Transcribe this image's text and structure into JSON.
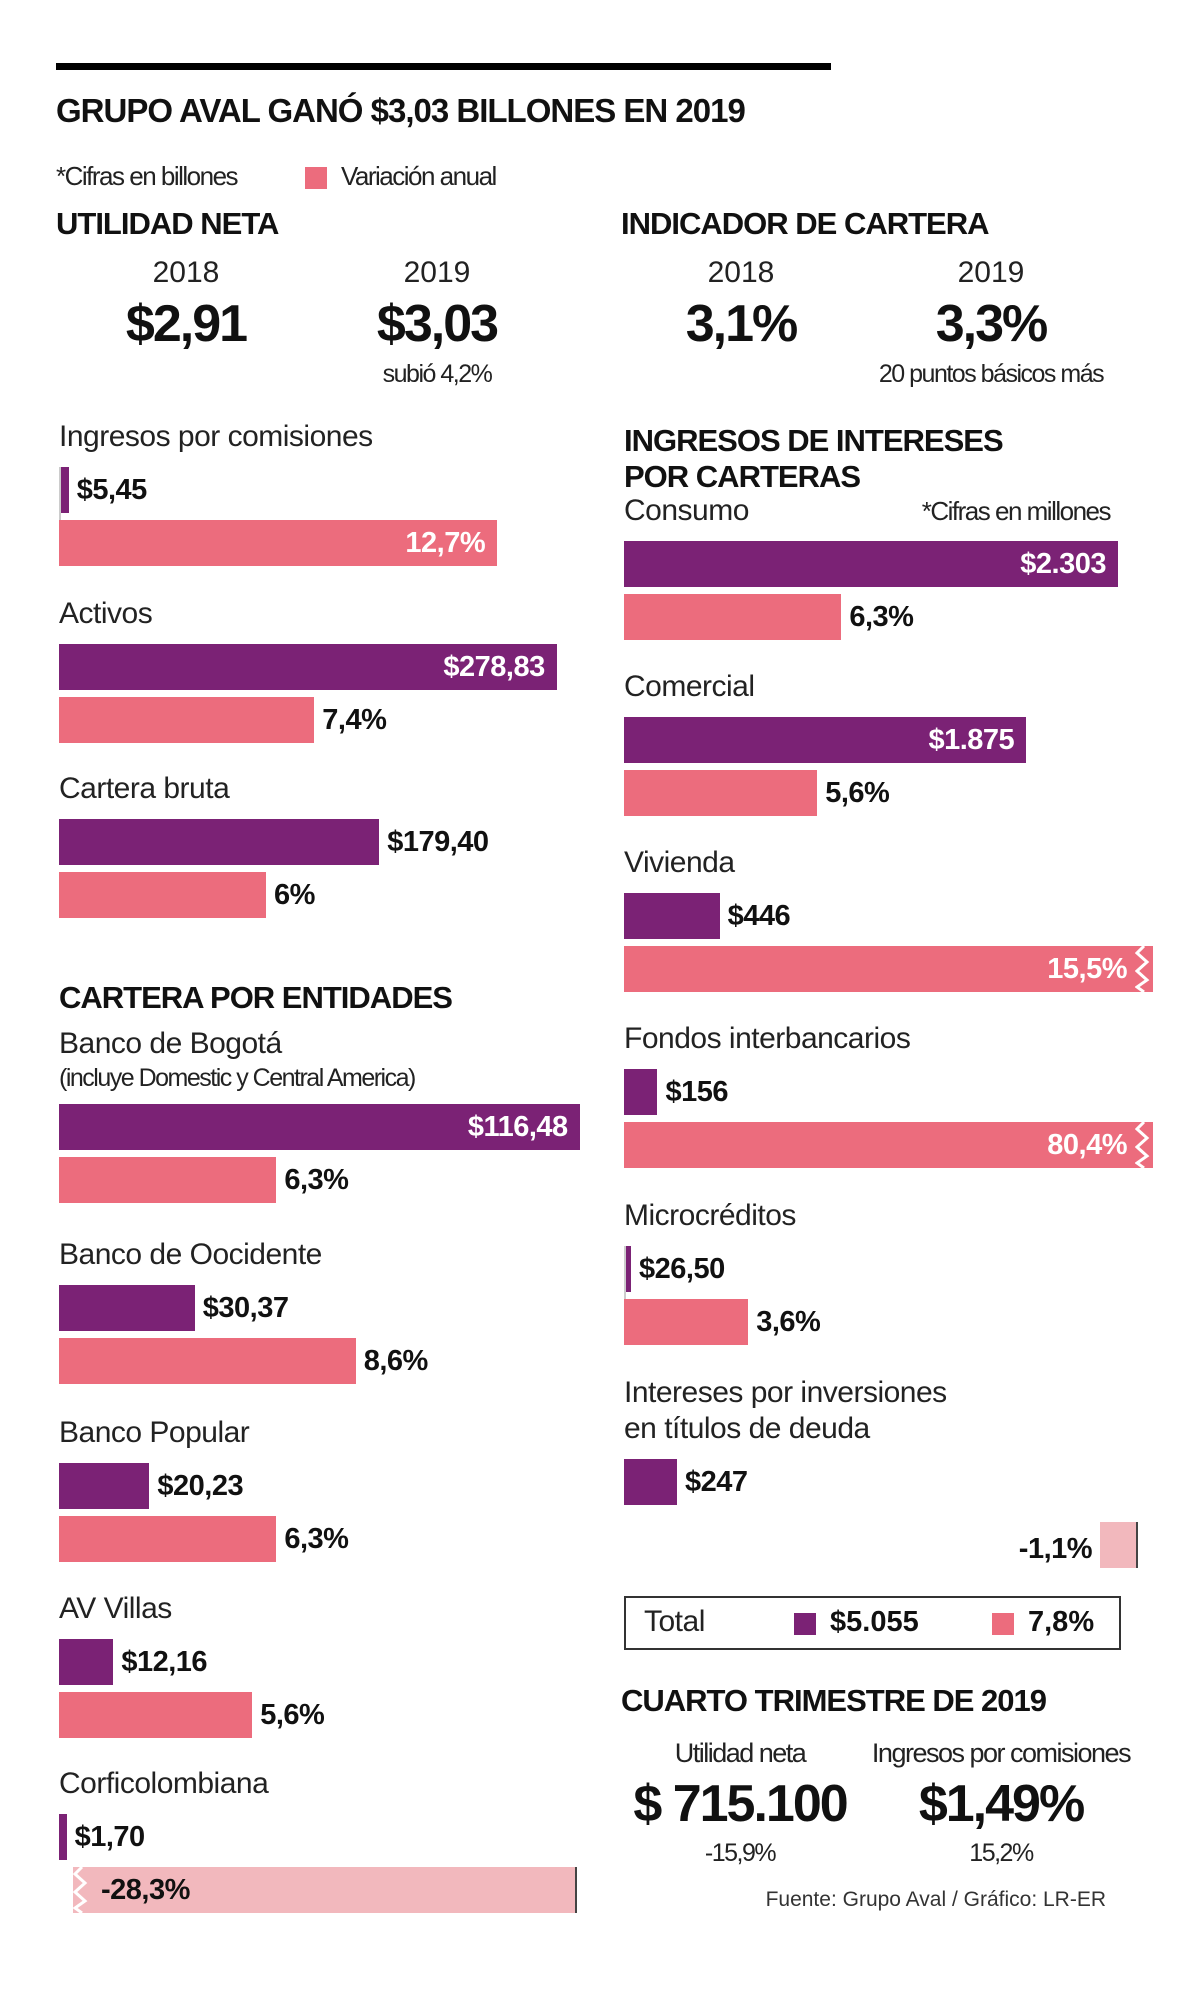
{
  "title": "GRUPO AVAL GANÓ $3,03 BILLONES EN 2019",
  "legend": {
    "note": "*Cifras en billones",
    "variation_label": "Variación anual"
  },
  "colors": {
    "value": "#7b2275",
    "variation": "#ec6c7d",
    "negative_variation": "#f2b8bd"
  },
  "utilidad": {
    "heading": "UTILIDAD NETA",
    "year1": "2018",
    "value1": "$2,91",
    "year2": "2019",
    "value2": "$3,03",
    "note": "subió 4,2%"
  },
  "indicador": {
    "heading": "INDICADOR DE CARTERA",
    "year1": "2018",
    "value1": "3,1%",
    "year2": "2019",
    "value2": "3,3%",
    "note": "20 puntos básicos más"
  },
  "entidades_heading": "CARTERA POR ENTIDADES",
  "intereses": {
    "heading1": "INGRESOS DE INTERESES",
    "heading2": "POR CARTERAS",
    "note": "*Cifras en millones"
  },
  "chart_data": [
    {
      "type": "bar",
      "title": "",
      "unit": "billones",
      "categories": [
        "Ingresos por comisiones",
        "Activos",
        "Cartera bruta"
      ],
      "series": [
        {
          "values": [
            5.45,
            278.83,
            179.4
          ],
          "labels": [
            "$5,45",
            "$278,83",
            "$179,40"
          ]
        },
        {
          "name": "Variación anual",
          "values": [
            12.7,
            7.4,
            6
          ],
          "labels": [
            "12,7%",
            "7,4%",
            "6%"
          ]
        }
      ]
    },
    {
      "type": "bar",
      "title": "CARTERA POR ENTIDADES",
      "unit": "billones",
      "categories": [
        "Banco de Bogotá",
        "Banco de Oocidente",
        "Banco Popular",
        "AV Villas",
        "Corficolombiana"
      ],
      "sublabels": [
        "(incluye Domestic y Central America)",
        "",
        "",
        "",
        ""
      ],
      "series": [
        {
          "values": [
            116.48,
            30.37,
            20.23,
            12.16,
            1.7
          ],
          "labels": [
            "$116,48",
            "$30,37",
            "$20,23",
            "$12,16",
            "$1,70"
          ]
        },
        {
          "name": "Variación anual",
          "values": [
            6.3,
            8.6,
            6.3,
            5.6,
            -28.3
          ],
          "labels": [
            "6,3%",
            "8,6%",
            "6,3%",
            "5,6%",
            "-28,3%"
          ]
        }
      ]
    },
    {
      "type": "bar",
      "title": "INGRESOS DE INTERESES POR CARTERAS",
      "unit": "millones",
      "categories": [
        "Consumo",
        "Comercial",
        "Vivienda",
        "Fondos interbancarios",
        "Microcréditos",
        "Intereses por inversiones en títulos de deuda"
      ],
      "category_lines": [
        [
          "Consumo"
        ],
        [
          "Comercial"
        ],
        [
          "Vivienda"
        ],
        [
          "Fondos interbancarios"
        ],
        [
          "Microcréditos"
        ],
        [
          "Intereses por inversiones",
          "en títulos de deuda"
        ]
      ],
      "series": [
        {
          "values": [
            2303,
            1875,
            446,
            156,
            26.5,
            247
          ],
          "labels": [
            "$2.303",
            "$1.875",
            "$446",
            "$156",
            "$26,50",
            "$247"
          ]
        },
        {
          "name": "Variación anual",
          "values": [
            6.3,
            5.6,
            15.5,
            80.4,
            3.6,
            -1.1
          ],
          "labels": [
            "6,3%",
            "5,6%",
            "15,5%",
            "80,4%",
            "3,6%",
            "-1,1%"
          ]
        }
      ]
    }
  ],
  "total": {
    "label": "Total",
    "value": "$5.055",
    "variation": "7,8%"
  },
  "cuarto": {
    "heading": "CUARTO TRIMESTRE DE 2019",
    "items": [
      {
        "label": "Utilidad neta",
        "value": "$ 715.100",
        "change": "-15,9%"
      },
      {
        "label": "Ingresos por comisiones",
        "value": "$1,49%",
        "change": "15,2%"
      }
    ]
  },
  "source": "Fuente: Grupo Aval / Gráfico: LR-ER"
}
